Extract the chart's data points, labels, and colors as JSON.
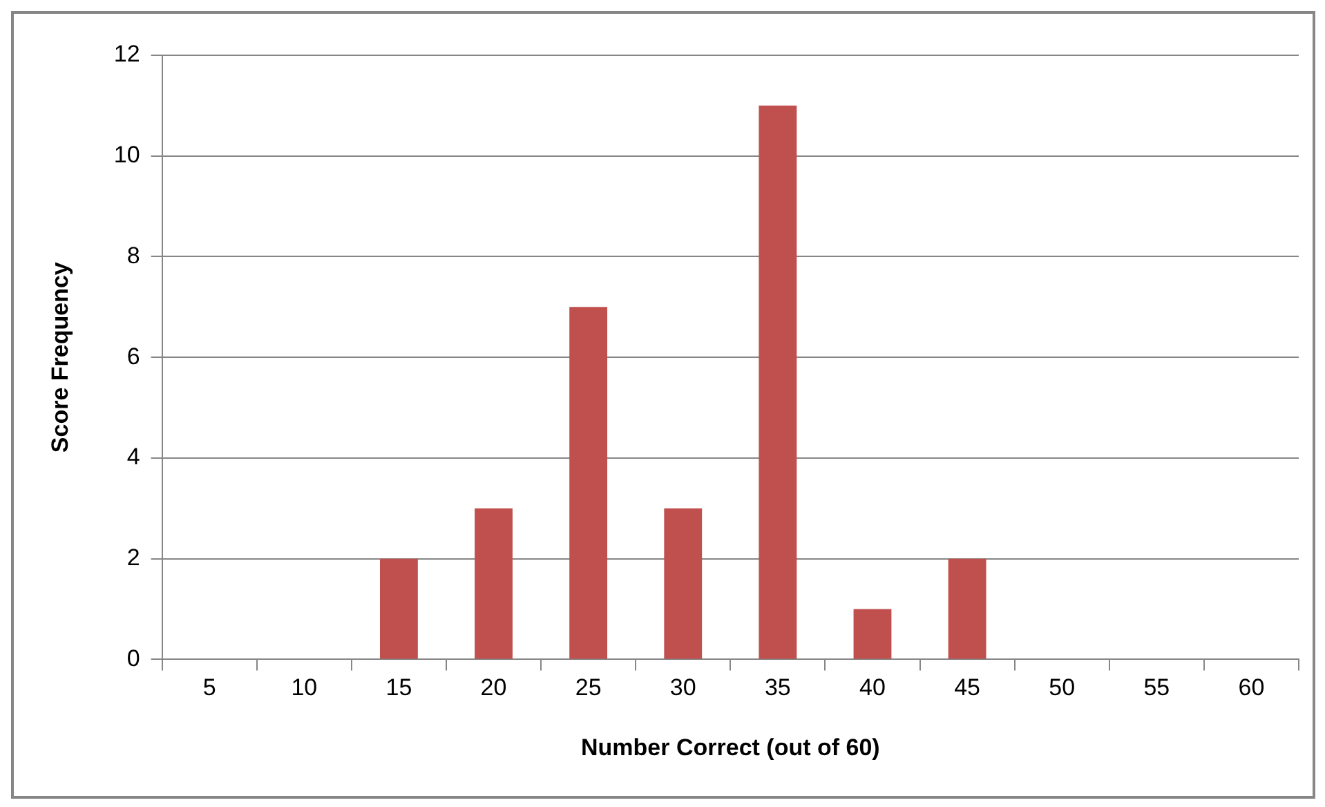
{
  "chart_data": {
    "type": "bar",
    "xlabel": "Number Correct (out of 60)",
    "ylabel": "Score Frequency",
    "categories": [
      "5",
      "10",
      "15",
      "20",
      "25",
      "30",
      "35",
      "40",
      "45",
      "50",
      "55",
      "60"
    ],
    "values": [
      0,
      0,
      2,
      3,
      7,
      3,
      11,
      1,
      2,
      0,
      0,
      0
    ],
    "color": "#c0504d",
    "ylim": [
      0,
      12
    ],
    "yticks": [
      0,
      2,
      4,
      6,
      8,
      10,
      12
    ],
    "grid": "y",
    "legend": false
  }
}
